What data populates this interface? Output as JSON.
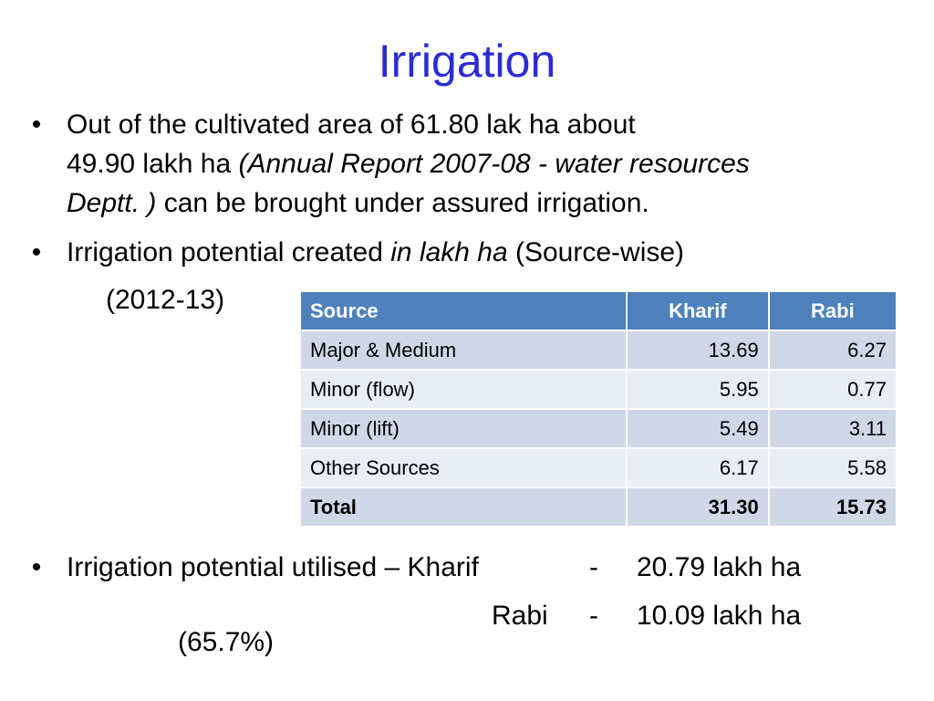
{
  "title": "Irrigation",
  "bullet1": {
    "line1": "Out of the cultivated area of 61.80 lak ha about",
    "line2_plain": "49.90 lakh ha ",
    "line2_italic": "(Annual Report 2007-08 - water resources",
    "line3_italic": "Deptt. )",
    "line3_plain": " can be brought under assured irrigation."
  },
  "bullet2": {
    "text_before": "Irrigation potential  created ",
    "text_italic": "in lakh ha",
    "text_after": " (Source-wise)",
    "year": "(2012-13)"
  },
  "table": {
    "headers": [
      "Source",
      "Kharif",
      "Rabi"
    ],
    "rows": [
      [
        "Major & Medium",
        "13.69",
        "6.27"
      ],
      [
        "Minor (flow)",
        "5.95",
        "0.77"
      ],
      [
        "Minor (lift)",
        "5.49",
        "3.11"
      ],
      [
        "Other Sources",
        "6.17",
        "5.58"
      ],
      [
        "Total",
        "31.30",
        "15.73"
      ]
    ]
  },
  "bullet3": {
    "text": "Irrigation potential utilised – Kharif",
    "dash1": "-",
    "kharif_value": "20.79 lakh ha",
    "rabi_label": "Rabi",
    "dash2": "-",
    "rabi_value": "10.09 lakh ha",
    "percent": "(65.7%)"
  },
  "colors": {
    "title": "#2b2bd6",
    "header_bg": "#4f81bd",
    "row_odd_bg": "#d0d8e8",
    "row_even_bg": "#e9edf4"
  }
}
